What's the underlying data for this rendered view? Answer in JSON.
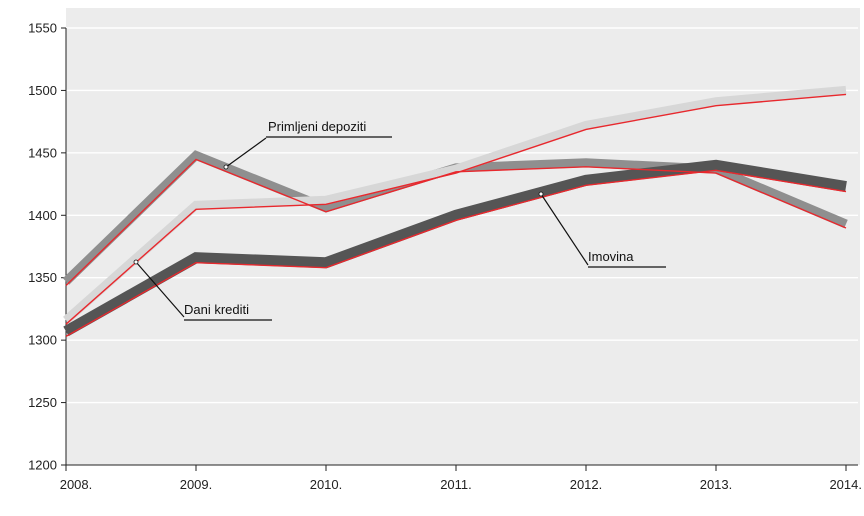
{
  "chart_data": {
    "type": "line",
    "title": "",
    "xlabel": "",
    "ylabel": "",
    "categories": [
      "2008.",
      "2009.",
      "2010.",
      "2011.",
      "2012.",
      "2013.",
      "2014."
    ],
    "ylim": [
      1200,
      1550
    ],
    "yticks": [
      1200,
      1250,
      1300,
      1350,
      1400,
      1450,
      1500,
      1550
    ],
    "grid": "horizontal",
    "legend": "none",
    "series": [
      {
        "name": "Primljeni depoziti",
        "color": "#8f8f8f",
        "values": [
          1347,
          1448,
          1406,
          1438,
          1442,
          1437,
          1393
        ]
      },
      {
        "name": "Dani krediti",
        "color": "#d7d7d7",
        "values": [
          1316,
          1408,
          1412,
          1437,
          1472,
          1491,
          1500
        ]
      },
      {
        "name": "Imovina",
        "color": "#555555",
        "values": [
          1307,
          1366,
          1362,
          1400,
          1428,
          1440,
          1423
        ]
      }
    ],
    "overlay_color": "#e8282d",
    "annotations": [
      {
        "text": "Primljeni depoziti",
        "series": "Primljeni depoziti"
      },
      {
        "text": "Dani krediti",
        "series": "Dani krediti"
      },
      {
        "text": "Imovina",
        "series": "Imovina"
      }
    ]
  }
}
